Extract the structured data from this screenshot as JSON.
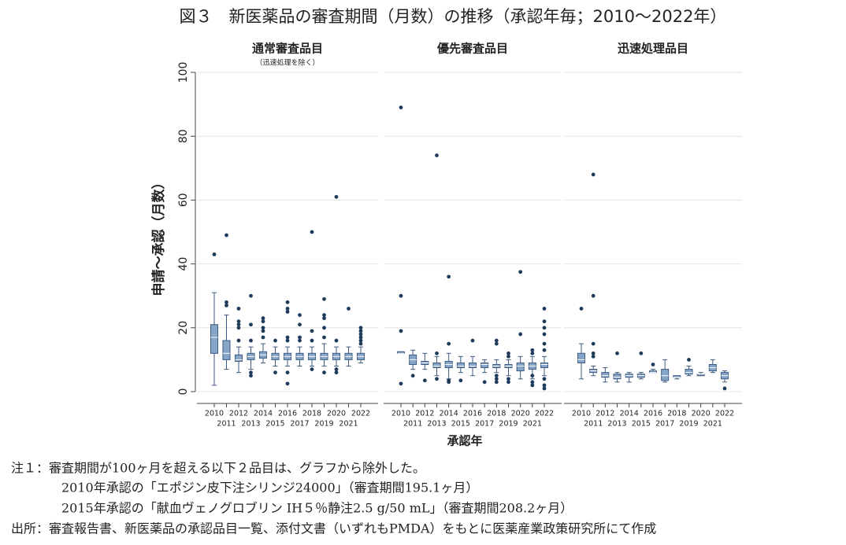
{
  "title": "図３　新医薬品の審査期間（月数）の推移（承認年毎；2010～2022年）",
  "y_label": "申請～承認（月数）",
  "x_label": "承認年",
  "notes": [
    "注１：審査期間が100ヶ月を超える以下２品目は、グラフから除外した。",
    "2010年承認の「エポジン皮下注シリンジ24000」（審査期間195.1ヶ月）",
    "2015年承認の「献血ヴェノグロブリン IH５％静注2.5 g/50 mL」（審査期間208.2ヶ月）",
    "出所：審査報告書、新医薬品の承認品目一覧、添付文書（いずれもPMDA）をもとに医薬産業政策研究所にて作成"
  ],
  "chart_data": [
    {
      "type": "box",
      "title": "通常審査品目",
      "subtitle": "（迅速処理を除く）",
      "color": "#86a5c9",
      "grid": true,
      "categories": [
        "2010",
        "2011",
        "2012",
        "2013",
        "2014",
        "2015",
        "2016",
        "2017",
        "2018",
        "2019",
        "2020",
        "2021",
        "2022"
      ],
      "ylim": [
        0,
        100
      ],
      "yticks": [
        0,
        20,
        40,
        60,
        80,
        100
      ],
      "boxes": [
        {
          "whislo": 2,
          "q1": 12,
          "med": 17,
          "q3": 21,
          "whishi": 31,
          "fliers": [
            43
          ]
        },
        {
          "whislo": 7,
          "q1": 10,
          "med": 12,
          "q3": 16,
          "whishi": 24,
          "fliers": [
            27,
            28,
            49
          ]
        },
        {
          "whislo": 6,
          "q1": 9.5,
          "med": 10,
          "q3": 11.5,
          "whishi": 14,
          "fliers": [
            16,
            20,
            21,
            22,
            26
          ]
        },
        {
          "whislo": 7,
          "q1": 10,
          "med": 11,
          "q3": 12,
          "whishi": 14,
          "fliers": [
            5,
            6,
            16,
            21,
            30
          ]
        },
        {
          "whislo": 9,
          "q1": 10.5,
          "med": 11.5,
          "q3": 12.5,
          "whishi": 15,
          "fliers": [
            17,
            19,
            20,
            22,
            23
          ]
        },
        {
          "whislo": 8,
          "q1": 10,
          "med": 11,
          "q3": 12,
          "whishi": 14,
          "fliers": [
            6,
            16
          ]
        },
        {
          "whislo": 8,
          "q1": 10,
          "med": 11,
          "q3": 12,
          "whishi": 14,
          "fliers": [
            2.5,
            6,
            16,
            17,
            25,
            26,
            28
          ]
        },
        {
          "whislo": 8,
          "q1": 10,
          "med": 11,
          "q3": 12,
          "whishi": 14,
          "fliers": [
            16,
            17,
            21,
            24
          ]
        },
        {
          "whislo": 8,
          "q1": 10,
          "med": 11,
          "q3": 12,
          "whishi": 14,
          "fliers": [
            7,
            16,
            19,
            50
          ]
        },
        {
          "whislo": 8,
          "q1": 10,
          "med": 11,
          "q3": 12,
          "whishi": 15,
          "fliers": [
            6,
            17,
            20,
            23,
            24,
            29
          ]
        },
        {
          "whislo": 8,
          "q1": 10,
          "med": 11,
          "q3": 12,
          "whishi": 14,
          "fliers": [
            6,
            7,
            16,
            61
          ]
        },
        {
          "whislo": 8,
          "q1": 10,
          "med": 11,
          "q3": 12,
          "whishi": 14,
          "fliers": [
            26
          ]
        },
        {
          "whislo": 9,
          "q1": 10,
          "med": 11,
          "q3": 12,
          "whishi": 14,
          "fliers": [
            15,
            16,
            17,
            18,
            19,
            20
          ]
        }
      ]
    },
    {
      "type": "box",
      "title": "優先審査品目",
      "color": "#86a5c9",
      "grid": true,
      "categories": [
        "2010",
        "2011",
        "2012",
        "2013",
        "2014",
        "2015",
        "2016",
        "2017",
        "2018",
        "2019",
        "2020",
        "2021",
        "2022"
      ],
      "ylim": [
        0,
        100
      ],
      "yticks": [
        0,
        20,
        40,
        60,
        80,
        100
      ],
      "boxes": [
        {
          "whislo": 12,
          "q1": 12,
          "med": 12,
          "q3": 12.5,
          "whishi": 12.5,
          "fliers": [
            2.5,
            19,
            30,
            89
          ]
        },
        {
          "whislo": 7,
          "q1": 8.5,
          "med": 10,
          "q3": 11.5,
          "whishi": 13,
          "fliers": [
            5
          ]
        },
        {
          "whislo": 7,
          "q1": 8.5,
          "med": 9,
          "q3": 9.5,
          "whishi": 12,
          "fliers": [
            3.5
          ]
        },
        {
          "whislo": 5,
          "q1": 7.5,
          "med": 8,
          "q3": 9,
          "whishi": 11,
          "fliers": [
            4,
            12,
            74
          ]
        },
        {
          "whislo": 4,
          "q1": 7.5,
          "med": 8.5,
          "q3": 9.5,
          "whishi": 12,
          "fliers": [
            3,
            3.5,
            15,
            36
          ]
        },
        {
          "whislo": 6,
          "q1": 7.5,
          "med": 8,
          "q3": 9,
          "whishi": 11,
          "fliers": [
            3.5
          ]
        },
        {
          "whislo": 5,
          "q1": 7.5,
          "med": 8,
          "q3": 9,
          "whishi": 11,
          "fliers": [
            16
          ]
        },
        {
          "whislo": 6,
          "q1": 7.5,
          "med": 8.5,
          "q3": 9,
          "whishi": 10,
          "fliers": [
            3
          ]
        },
        {
          "whislo": 6,
          "q1": 7.5,
          "med": 8,
          "q3": 8.5,
          "whishi": 10,
          "fliers": [
            3,
            4,
            5,
            15,
            16
          ]
        },
        {
          "whislo": 5,
          "q1": 7.5,
          "med": 8,
          "q3": 8.5,
          "whishi": 10,
          "fliers": [
            3,
            4,
            11,
            12
          ]
        },
        {
          "whislo": 4,
          "q1": 6.5,
          "med": 8,
          "q3": 9,
          "whishi": 11,
          "fliers": [
            18,
            37.5
          ]
        },
        {
          "whislo": 4,
          "q1": 7,
          "med": 8,
          "q3": 9,
          "whishi": 11,
          "fliers": [
            2,
            3,
            5,
            12,
            13
          ]
        },
        {
          "whislo": 5,
          "q1": 7.5,
          "med": 8.5,
          "q3": 9,
          "whishi": 11,
          "fliers": [
            1,
            2,
            4,
            13,
            15,
            18,
            20,
            22,
            26
          ]
        }
      ]
    },
    {
      "type": "box",
      "title": "迅速処理品目",
      "color": "#86a5c9",
      "grid": true,
      "categories": [
        "2010",
        "2011",
        "2012",
        "2013",
        "2014",
        "2015",
        "2016",
        "2017",
        "2018",
        "2019",
        "2020",
        "2021",
        "2022"
      ],
      "ylim": [
        0,
        100
      ],
      "yticks": [
        0,
        20,
        40,
        60,
        80,
        100
      ],
      "boxes": [
        {
          "whislo": 4,
          "q1": 9,
          "med": 10,
          "q3": 12,
          "whishi": 15,
          "fliers": [
            26
          ]
        },
        {
          "whislo": 5,
          "q1": 6,
          "med": 6.5,
          "q3": 7,
          "whishi": 8,
          "fliers": [
            11,
            12,
            15,
            30,
            68
          ]
        },
        {
          "whislo": 3,
          "q1": 4.5,
          "med": 5,
          "q3": 6,
          "whishi": 7.5,
          "fliers": []
        },
        {
          "whislo": 3,
          "q1": 4,
          "med": 4.5,
          "q3": 5.5,
          "whishi": 6,
          "fliers": [
            12
          ]
        },
        {
          "whislo": 3,
          "q1": 4.5,
          "med": 5,
          "q3": 5.5,
          "whishi": 6,
          "fliers": []
        },
        {
          "whislo": 4,
          "q1": 4.5,
          "med": 5,
          "q3": 5.5,
          "whishi": 6,
          "fliers": [
            12
          ]
        },
        {
          "whislo": 6,
          "q1": 6,
          "med": 6,
          "q3": 6.5,
          "whishi": 7,
          "fliers": [
            8.5
          ]
        },
        {
          "whislo": 3,
          "q1": 3.5,
          "med": 5,
          "q3": 7,
          "whishi": 10,
          "fliers": []
        },
        {
          "whislo": 4,
          "q1": 4.5,
          "med": 4.5,
          "q3": 5,
          "whishi": 5,
          "fliers": []
        },
        {
          "whislo": 5,
          "q1": 5.5,
          "med": 6,
          "q3": 7,
          "whishi": 8,
          "fliers": [
            10
          ]
        },
        {
          "whislo": 5,
          "q1": 5,
          "med": 5.5,
          "q3": 5.5,
          "whishi": 6,
          "fliers": []
        },
        {
          "whislo": 6,
          "q1": 6.5,
          "med": 7.5,
          "q3": 8.5,
          "whishi": 10,
          "fliers": []
        },
        {
          "whislo": 3,
          "q1": 4,
          "med": 5,
          "q3": 6,
          "whishi": 6.5,
          "fliers": [
            1
          ]
        }
      ]
    }
  ]
}
